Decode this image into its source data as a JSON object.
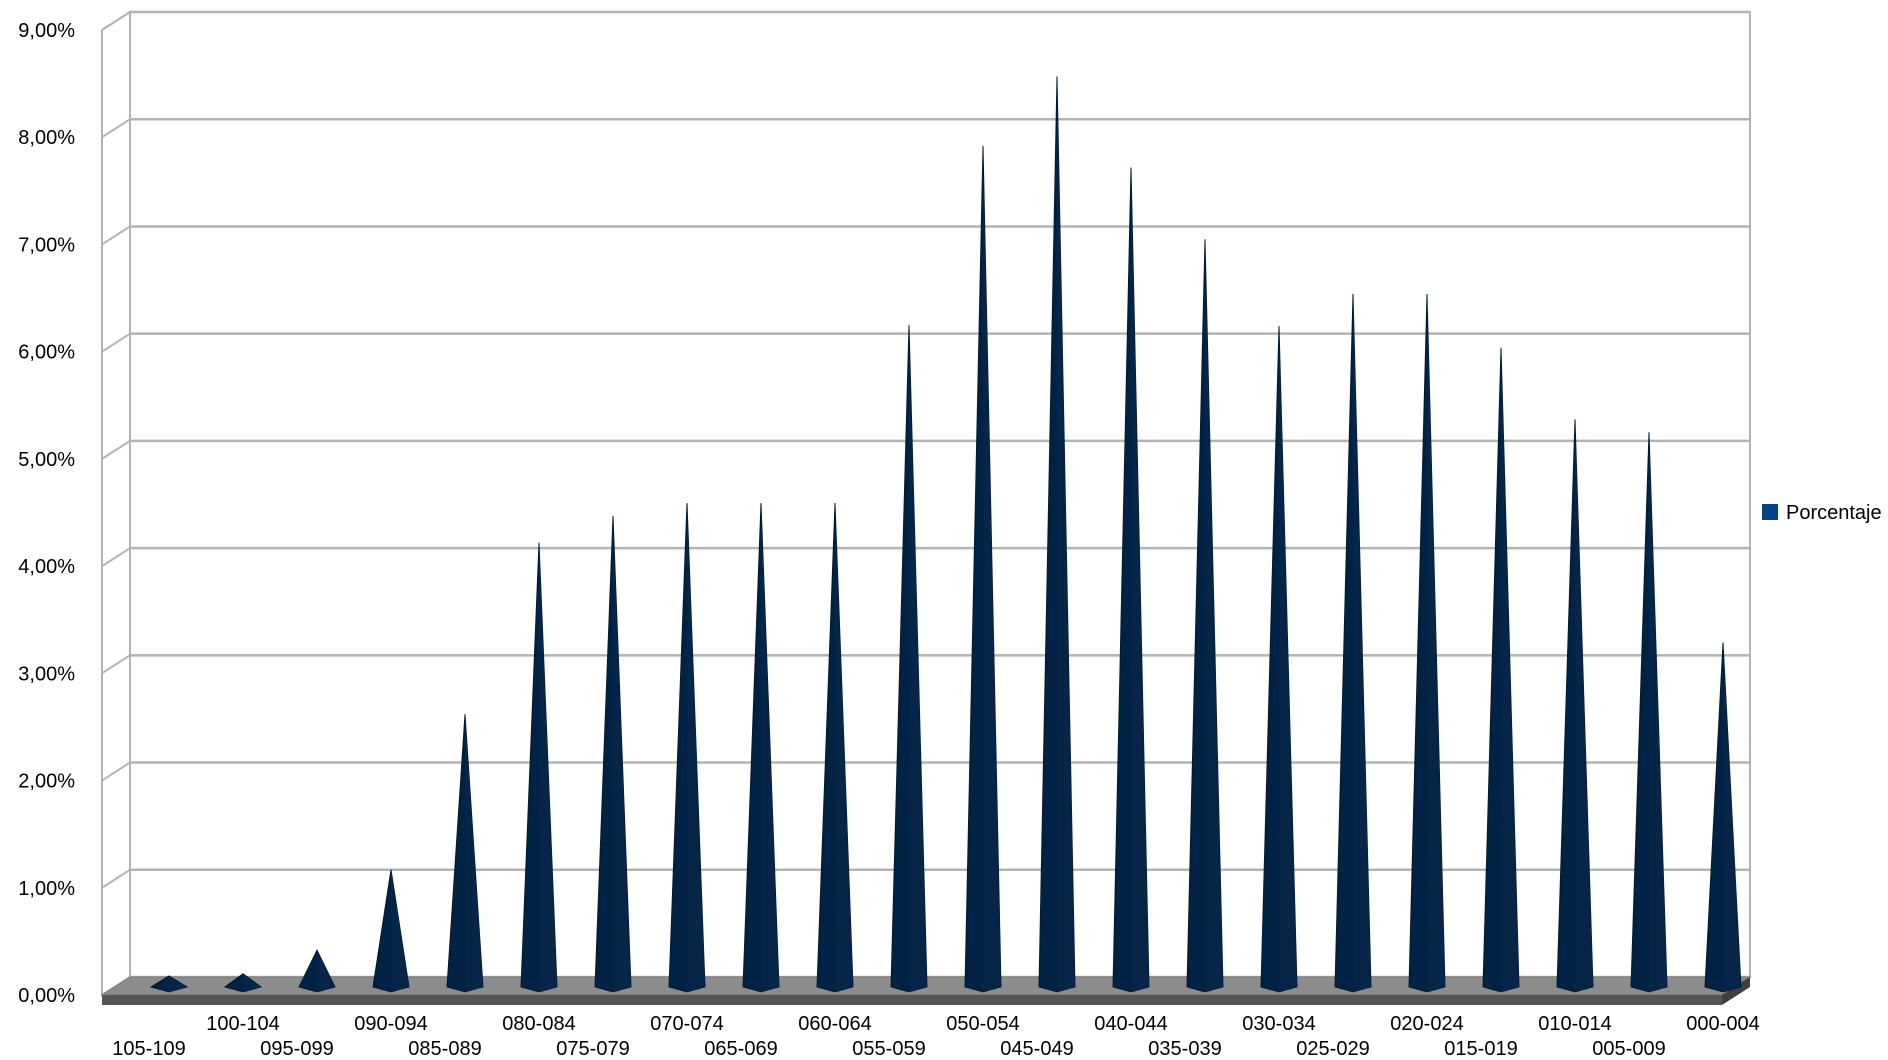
{
  "chart_data": {
    "type": "bar",
    "title": "",
    "xlabel": "",
    "ylabel": "",
    "ylim": [
      0,
      9
    ],
    "y_ticks": [
      "0,00%",
      "1,00%",
      "2,00%",
      "3,00%",
      "4,00%",
      "5,00%",
      "6,00%",
      "7,00%",
      "8,00%",
      "9,00%"
    ],
    "grid": true,
    "legend_position": "right",
    "categories": [
      "105-109",
      "100-104",
      "095-099",
      "090-094",
      "085-089",
      "080-084",
      "075-079",
      "070-074",
      "065-069",
      "060-064",
      "055-059",
      "050-054",
      "045-049",
      "040-044",
      "035-039",
      "030-034",
      "025-029",
      "020-024",
      "015-019",
      "010-014",
      "005-009",
      "000-004"
    ],
    "series": [
      {
        "name": "Porcentaje",
        "color": "#002244",
        "values": [
          0.01,
          0.03,
          0.25,
          1.0,
          2.45,
          4.05,
          4.3,
          4.42,
          4.42,
          4.42,
          6.08,
          7.75,
          8.4,
          7.55,
          6.88,
          6.07,
          6.37,
          6.37,
          5.87,
          5.2,
          5.08,
          3.12
        ]
      }
    ]
  }
}
